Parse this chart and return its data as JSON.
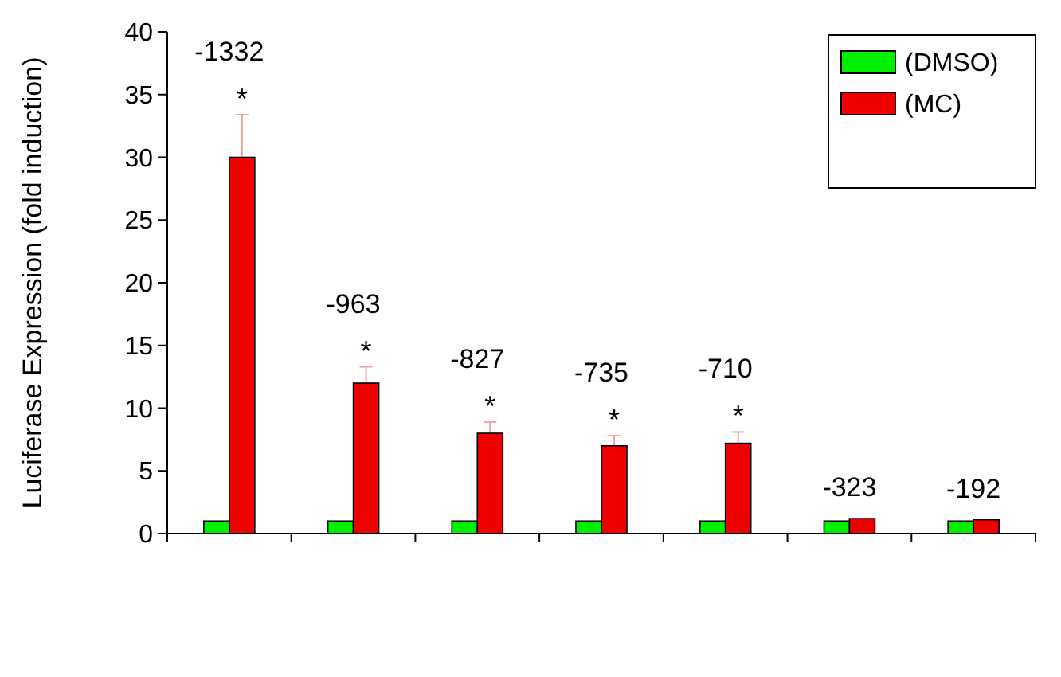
{
  "chart_data": {
    "type": "bar",
    "ylabel": "Luciferase Expression (fold induction)",
    "categories": [
      "-1332",
      "-963",
      "-827",
      "-735",
      "-710",
      "-323",
      "-192"
    ],
    "series": [
      {
        "name": "(DMSO)",
        "color": "#00ee00",
        "values": [
          1,
          1,
          1,
          1,
          1,
          1,
          1
        ]
      },
      {
        "name": "(MC)",
        "color": "#ee0000",
        "values": [
          30,
          12,
          8,
          7,
          7.2,
          1.2,
          1.1
        ],
        "errors": [
          3.4,
          1.3,
          0.9,
          0.8,
          0.9,
          null,
          null
        ]
      }
    ],
    "ylim": [
      0,
      40
    ],
    "yticks": [
      0,
      5,
      10,
      15,
      20,
      25,
      30,
      35,
      40
    ],
    "grid": false,
    "legend": "top right",
    "annotations": [
      {
        "text": "*",
        "x": "-1332",
        "y": 30
      },
      {
        "text": "*",
        "x": "-963",
        "y": 12
      },
      {
        "text": "*",
        "x": "-827",
        "y": 8
      },
      {
        "text": "*",
        "x": "-735",
        "y": 7
      },
      {
        "text": "*",
        "x": "-710",
        "y": 7.2
      }
    ]
  }
}
